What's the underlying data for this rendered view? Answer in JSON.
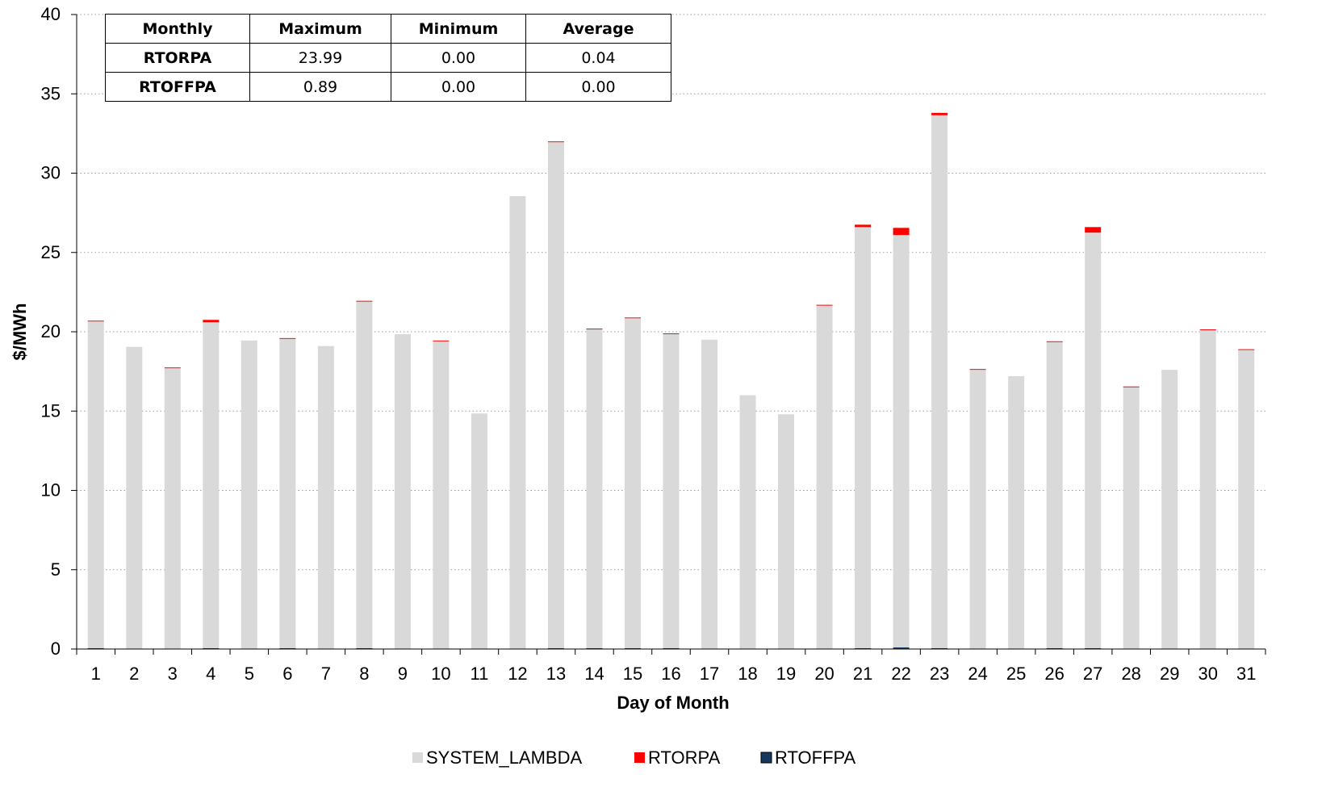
{
  "chart_data": {
    "type": "bar",
    "stacked": true,
    "xlabel": "Day of Month",
    "ylabel": "$/MWh",
    "ylim": [
      0,
      40
    ],
    "yticks": [
      0,
      5,
      10,
      15,
      20,
      25,
      30,
      35,
      40
    ],
    "grid": "horizontal-dotted",
    "legend_position": "bottom",
    "categories": [
      "1",
      "2",
      "3",
      "4",
      "5",
      "6",
      "7",
      "8",
      "9",
      "10",
      "11",
      "12",
      "13",
      "14",
      "15",
      "16",
      "17",
      "18",
      "19",
      "20",
      "21",
      "22",
      "23",
      "24",
      "25",
      "26",
      "27",
      "28",
      "29",
      "30",
      "31"
    ],
    "series": [
      {
        "name": "RTOFFPA",
        "color": "#17375e",
        "values": [
          0.05,
          0,
          0,
          0.05,
          0,
          0.05,
          0,
          0.05,
          0,
          0,
          0,
          0,
          0.05,
          0.05,
          0.05,
          0.05,
          0,
          0,
          0,
          0,
          0.05,
          0.1,
          0.05,
          0,
          0,
          0.05,
          0.05,
          0,
          0,
          0,
          0
        ]
      },
      {
        "name": "SYSTEM_LAMBDA",
        "color": "#d9d9d9",
        "values": [
          20.6,
          19.05,
          17.7,
          20.55,
          19.45,
          19.5,
          19.1,
          21.85,
          19.85,
          19.4,
          14.85,
          28.55,
          31.9,
          20.1,
          20.8,
          19.8,
          19.5,
          16.0,
          14.8,
          21.65,
          26.55,
          26.0,
          33.6,
          17.6,
          17.2,
          19.3,
          26.2,
          16.5,
          17.6,
          20.1,
          18.85
        ]
      },
      {
        "name": "RTORPA",
        "color": "#ff0000",
        "values": [
          0.05,
          0,
          0.05,
          0.15,
          0,
          0.05,
          0,
          0.05,
          0,
          0.05,
          0,
          0,
          0.05,
          0.05,
          0.05,
          0.05,
          0,
          0,
          0,
          0.05,
          0.15,
          0.45,
          0.15,
          0.05,
          0,
          0.05,
          0.35,
          0.05,
          0,
          0.05,
          0.05
        ]
      }
    ]
  },
  "stats_table": {
    "headers": [
      "Monthly",
      "Maximum",
      "Minimum",
      "Average"
    ],
    "rows": [
      [
        "RTORPA",
        "23.99",
        "0.00",
        "0.04"
      ],
      [
        "RTOFFPA",
        "0.89",
        "0.00",
        "0.00"
      ]
    ]
  },
  "legend": [
    "SYSTEM_LAMBDA",
    "RTORPA",
    "RTOFFPA"
  ]
}
